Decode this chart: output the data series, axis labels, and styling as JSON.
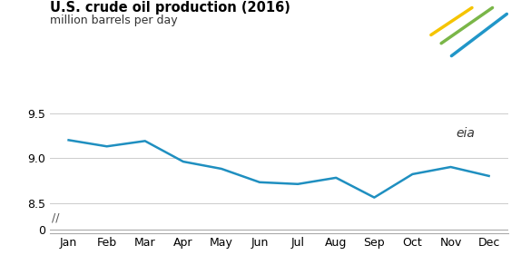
{
  "title": "U.S. crude oil production (2016)",
  "subtitle": "million barrels per day",
  "months": [
    "Jan",
    "Feb",
    "Mar",
    "Apr",
    "May",
    "Jun",
    "Jul",
    "Aug",
    "Sep",
    "Oct",
    "Nov",
    "Dec"
  ],
  "values": [
    9.2,
    9.13,
    9.19,
    8.96,
    8.88,
    8.73,
    8.71,
    8.78,
    8.56,
    8.82,
    8.9,
    8.8
  ],
  "line_color": "#1f8fc0",
  "line_width": 1.8,
  "ylim_main": [
    8.38,
    9.58
  ],
  "yticks_main": [
    8.5,
    9.0,
    9.5
  ],
  "bg_color": "#ffffff",
  "grid_color": "#cccccc",
  "title_fontsize": 10.5,
  "subtitle_fontsize": 9,
  "tick_fontsize": 9
}
